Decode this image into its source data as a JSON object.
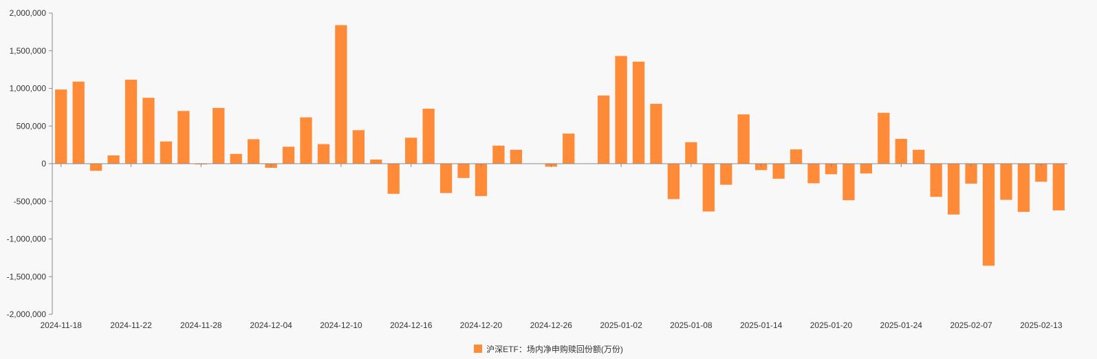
{
  "colors": {
    "bar": "#FF8B38",
    "axis": "#888888",
    "label": "#333333"
  },
  "chart_data": {
    "type": "bar",
    "title": "",
    "xlabel": "",
    "ylabel": "",
    "ylim": [
      -2000000,
      2000000
    ],
    "y_ticks": [
      -2000000,
      -1500000,
      -1000000,
      -500000,
      0,
      500000,
      1000000,
      1500000,
      2000000
    ],
    "y_tick_labels": [
      "-2,000,000",
      "-1,500,000",
      "-1,000,000",
      "-500,000",
      "0",
      "500,000",
      "1,000,000",
      "1,500,000",
      "2,000,000"
    ],
    "grid": false,
    "legend_position": "bottom-center",
    "x_tick_labels": [
      "2024-11-18",
      "2024-11-22",
      "2024-11-28",
      "2024-12-04",
      "2024-12-10",
      "2024-12-16",
      "2024-12-20",
      "2024-12-26",
      "2025-01-02",
      "2025-01-08",
      "2025-01-14",
      "2025-01-20",
      "2025-01-24",
      "2025-02-07",
      "2025-02-13"
    ],
    "series": [
      {
        "name": "沪深ETF：场内净申购赎回份额(万份)",
        "values": [
          985000,
          1090000,
          -95000,
          110000,
          1115000,
          875000,
          295000,
          700000,
          -10000,
          740000,
          130000,
          325000,
          -55000,
          225000,
          615000,
          260000,
          1840000,
          445000,
          55000,
          -400000,
          345000,
          730000,
          -390000,
          -190000,
          -430000,
          240000,
          185000,
          0,
          -40000,
          400000,
          0,
          905000,
          1430000,
          1355000,
          795000,
          -470000,
          285000,
          -635000,
          -280000,
          655000,
          -85000,
          -200000,
          190000,
          -260000,
          -140000,
          -485000,
          -130000,
          675000,
          330000,
          185000,
          -440000,
          -675000,
          -265000,
          -1355000,
          -480000,
          -640000,
          -240000,
          -620000
        ]
      }
    ]
  }
}
